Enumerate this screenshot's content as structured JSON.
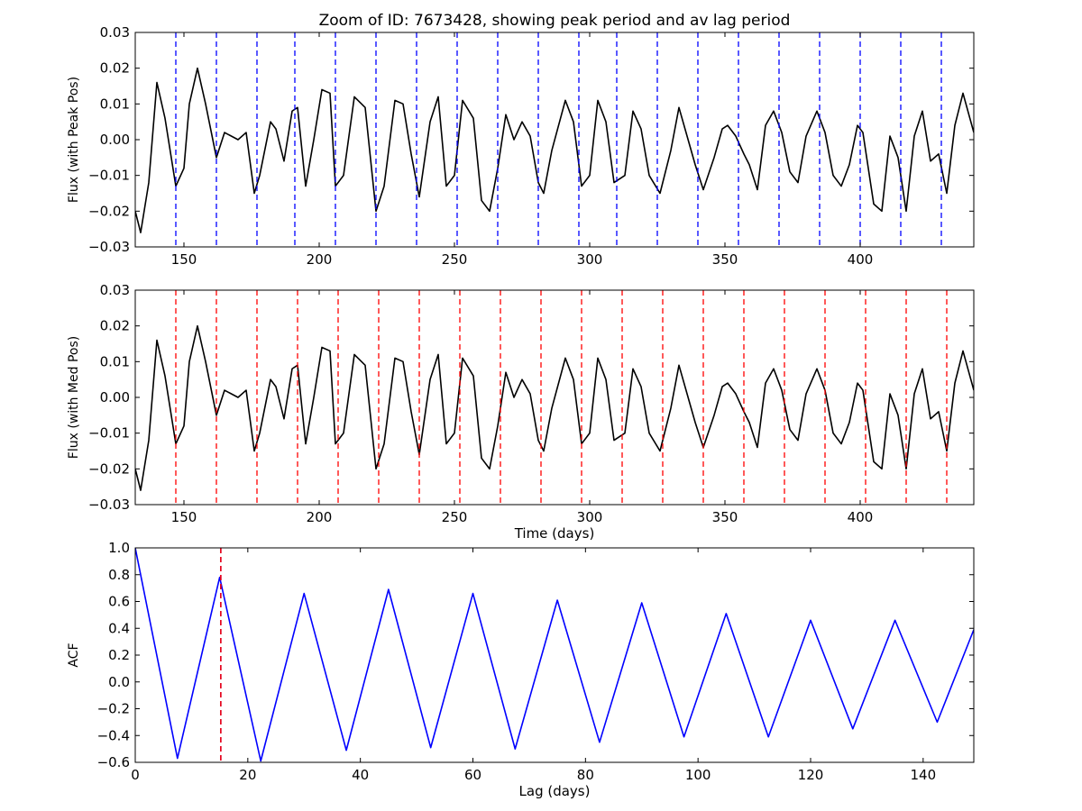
{
  "chart_data": [
    {
      "type": "line",
      "title": "Zoom of ID: 7673428, showing peak period and av lag period",
      "xlabel": "",
      "ylabel": "Flux (with Peak Pos)",
      "xlim": [
        132,
        442
      ],
      "ylim": [
        -0.03,
        0.03
      ],
      "xticks": [
        150,
        200,
        250,
        300,
        350,
        400
      ],
      "xtick_labels": [
        "150",
        "200",
        "250",
        "300",
        "350",
        "400"
      ],
      "yticks": [
        -0.03,
        -0.02,
        -0.01,
        0.0,
        0.01,
        0.02,
        0.03
      ],
      "ytick_labels": [
        "−0.03",
        "−0.02",
        "−0.01",
        "0.00",
        "0.01",
        "0.02",
        "0.03"
      ],
      "series": [
        {
          "color": "#000000",
          "style": "solid",
          "x": [
            132,
            134,
            137,
            140,
            143,
            147,
            150,
            152,
            155,
            158,
            162,
            165,
            170,
            173,
            176,
            178,
            182,
            184,
            187,
            190,
            192,
            195,
            198,
            201,
            204,
            206,
            209,
            213,
            217,
            221,
            224,
            228,
            231,
            234,
            237,
            241,
            244,
            247,
            250,
            253,
            257,
            260,
            263,
            266,
            269,
            272,
            275,
            278,
            281,
            283,
            286,
            291,
            294,
            297,
            300,
            303,
            306,
            309,
            313,
            316,
            319,
            322,
            326,
            330,
            333,
            336,
            339,
            342,
            346,
            349,
            351,
            354,
            357,
            359,
            362,
            365,
            368,
            371,
            374,
            377,
            380,
            384,
            387,
            390,
            393,
            396,
            399,
            401,
            405,
            408,
            411,
            414,
            417,
            420,
            423,
            426,
            429,
            432,
            435,
            438,
            442
          ],
          "y": [
            -0.02,
            -0.026,
            -0.012,
            0.016,
            0.006,
            -0.013,
            -0.008,
            0.01,
            0.02,
            0.01,
            -0.005,
            0.002,
            0.0,
            0.002,
            -0.015,
            -0.01,
            0.005,
            0.003,
            -0.006,
            0.008,
            0.009,
            -0.013,
            0.0,
            0.014,
            0.013,
            -0.013,
            -0.01,
            0.012,
            0.009,
            -0.02,
            -0.013,
            0.011,
            0.01,
            -0.004,
            -0.016,
            0.005,
            0.012,
            -0.013,
            -0.01,
            0.011,
            0.006,
            -0.017,
            -0.02,
            -0.008,
            0.007,
            0.0,
            0.005,
            0.001,
            -0.012,
            -0.015,
            -0.003,
            0.011,
            0.005,
            -0.013,
            -0.01,
            0.011,
            0.005,
            -0.012,
            -0.01,
            0.008,
            0.003,
            -0.01,
            -0.015,
            -0.003,
            0.009,
            0.001,
            -0.007,
            -0.014,
            -0.005,
            0.003,
            0.004,
            0.001,
            -0.004,
            -0.007,
            -0.014,
            0.004,
            0.008,
            0.002,
            -0.009,
            -0.012,
            0.001,
            0.008,
            0.002,
            -0.01,
            -0.013,
            -0.007,
            0.004,
            0.002,
            -0.018,
            -0.02,
            0.001,
            -0.005,
            -0.02,
            0.001,
            0.008,
            -0.006,
            -0.004,
            -0.015,
            0.004,
            0.013,
            0.002
          ]
        }
      ],
      "vlines": {
        "color": "#0000ff",
        "style": "dashed",
        "x": [
          147,
          162,
          177,
          191,
          206,
          221,
          236,
          251,
          266,
          281,
          296,
          310,
          325,
          340,
          355,
          370,
          385,
          400,
          415,
          430
        ]
      },
      "grid": false
    },
    {
      "type": "line",
      "title": "",
      "xlabel": "Time (days)",
      "ylabel": "Flux (with Med Pos)",
      "xlim": [
        132,
        442
      ],
      "ylim": [
        -0.03,
        0.03
      ],
      "xticks": [
        150,
        200,
        250,
        300,
        350,
        400
      ],
      "xtick_labels": [
        "150",
        "200",
        "250",
        "300",
        "350",
        "400"
      ],
      "yticks": [
        -0.03,
        -0.02,
        -0.01,
        0.0,
        0.01,
        0.02,
        0.03
      ],
      "ytick_labels": [
        "−0.03",
        "−0.02",
        "−0.01",
        "0.00",
        "0.01",
        "0.02",
        "0.03"
      ],
      "series": [
        {
          "color": "#000000",
          "style": "solid",
          "x": [
            132,
            134,
            137,
            140,
            143,
            147,
            150,
            152,
            155,
            158,
            162,
            165,
            170,
            173,
            176,
            178,
            182,
            184,
            187,
            190,
            192,
            195,
            198,
            201,
            204,
            206,
            209,
            213,
            217,
            221,
            224,
            228,
            231,
            234,
            237,
            241,
            244,
            247,
            250,
            253,
            257,
            260,
            263,
            266,
            269,
            272,
            275,
            278,
            281,
            283,
            286,
            291,
            294,
            297,
            300,
            303,
            306,
            309,
            313,
            316,
            319,
            322,
            326,
            330,
            333,
            336,
            339,
            342,
            346,
            349,
            351,
            354,
            357,
            359,
            362,
            365,
            368,
            371,
            374,
            377,
            380,
            384,
            387,
            390,
            393,
            396,
            399,
            401,
            405,
            408,
            411,
            414,
            417,
            420,
            423,
            426,
            429,
            432,
            435,
            438,
            442
          ],
          "y": [
            -0.02,
            -0.026,
            -0.012,
            0.016,
            0.006,
            -0.013,
            -0.008,
            0.01,
            0.02,
            0.01,
            -0.005,
            0.002,
            0.0,
            0.002,
            -0.015,
            -0.01,
            0.005,
            0.003,
            -0.006,
            0.008,
            0.009,
            -0.013,
            0.0,
            0.014,
            0.013,
            -0.013,
            -0.01,
            0.012,
            0.009,
            -0.02,
            -0.013,
            0.011,
            0.01,
            -0.004,
            -0.016,
            0.005,
            0.012,
            -0.013,
            -0.01,
            0.011,
            0.006,
            -0.017,
            -0.02,
            -0.008,
            0.007,
            0.0,
            0.005,
            0.001,
            -0.012,
            -0.015,
            -0.003,
            0.011,
            0.005,
            -0.013,
            -0.01,
            0.011,
            0.005,
            -0.012,
            -0.01,
            0.008,
            0.003,
            -0.01,
            -0.015,
            -0.003,
            0.009,
            0.001,
            -0.007,
            -0.014,
            -0.005,
            0.003,
            0.004,
            0.001,
            -0.004,
            -0.007,
            -0.014,
            0.004,
            0.008,
            0.002,
            -0.009,
            -0.012,
            0.001,
            0.008,
            0.002,
            -0.01,
            -0.013,
            -0.007,
            0.004,
            0.002,
            -0.018,
            -0.02,
            0.001,
            -0.005,
            -0.02,
            0.001,
            0.008,
            -0.006,
            -0.004,
            -0.015,
            0.004,
            0.013,
            0.002
          ]
        }
      ],
      "vlines": {
        "color": "#ff0000",
        "style": "dashed",
        "x": [
          147,
          162,
          177,
          192,
          207,
          222,
          237,
          252,
          267,
          282,
          297,
          312,
          327,
          342,
          357,
          372,
          387,
          402,
          417,
          432
        ]
      },
      "grid": false
    },
    {
      "type": "line",
      "title": "",
      "xlabel": "Lag (days)",
      "ylabel": "ACF",
      "xlim": [
        0,
        149
      ],
      "ylim": [
        -0.6,
        1.0
      ],
      "xticks": [
        0,
        20,
        40,
        60,
        80,
        100,
        120,
        140
      ],
      "xtick_labels": [
        "0",
        "20",
        "40",
        "60",
        "80",
        "100",
        "120",
        "140"
      ],
      "yticks": [
        -0.6,
        -0.4,
        -0.2,
        0.0,
        0.2,
        0.4,
        0.6,
        0.8,
        1.0
      ],
      "ytick_labels": [
        "−0.6",
        "−0.4",
        "−0.2",
        "0.0",
        "0.2",
        "0.4",
        "0.6",
        "0.8",
        "1.0"
      ],
      "series": [
        {
          "color": "#0000ff",
          "style": "solid",
          "x": [
            0,
            7.5,
            15,
            22.3,
            30,
            37.5,
            45,
            52.5,
            60,
            67.5,
            75,
            82.5,
            90,
            97.5,
            105,
            112.5,
            120,
            127.5,
            135,
            142.5,
            149
          ],
          "y": [
            1.0,
            -0.57,
            0.78,
            -0.59,
            0.66,
            -0.51,
            0.69,
            -0.49,
            0.66,
            -0.5,
            0.61,
            -0.45,
            0.59,
            -0.41,
            0.51,
            -0.41,
            0.46,
            -0.35,
            0.46,
            -0.3,
            0.39
          ]
        }
      ],
      "vlines": [
        {
          "color": "#0000ff",
          "style": "dashed",
          "x": 15.2
        },
        {
          "color": "#ff0000",
          "style": "dashed",
          "x": 15.2
        }
      ],
      "grid": false
    }
  ]
}
